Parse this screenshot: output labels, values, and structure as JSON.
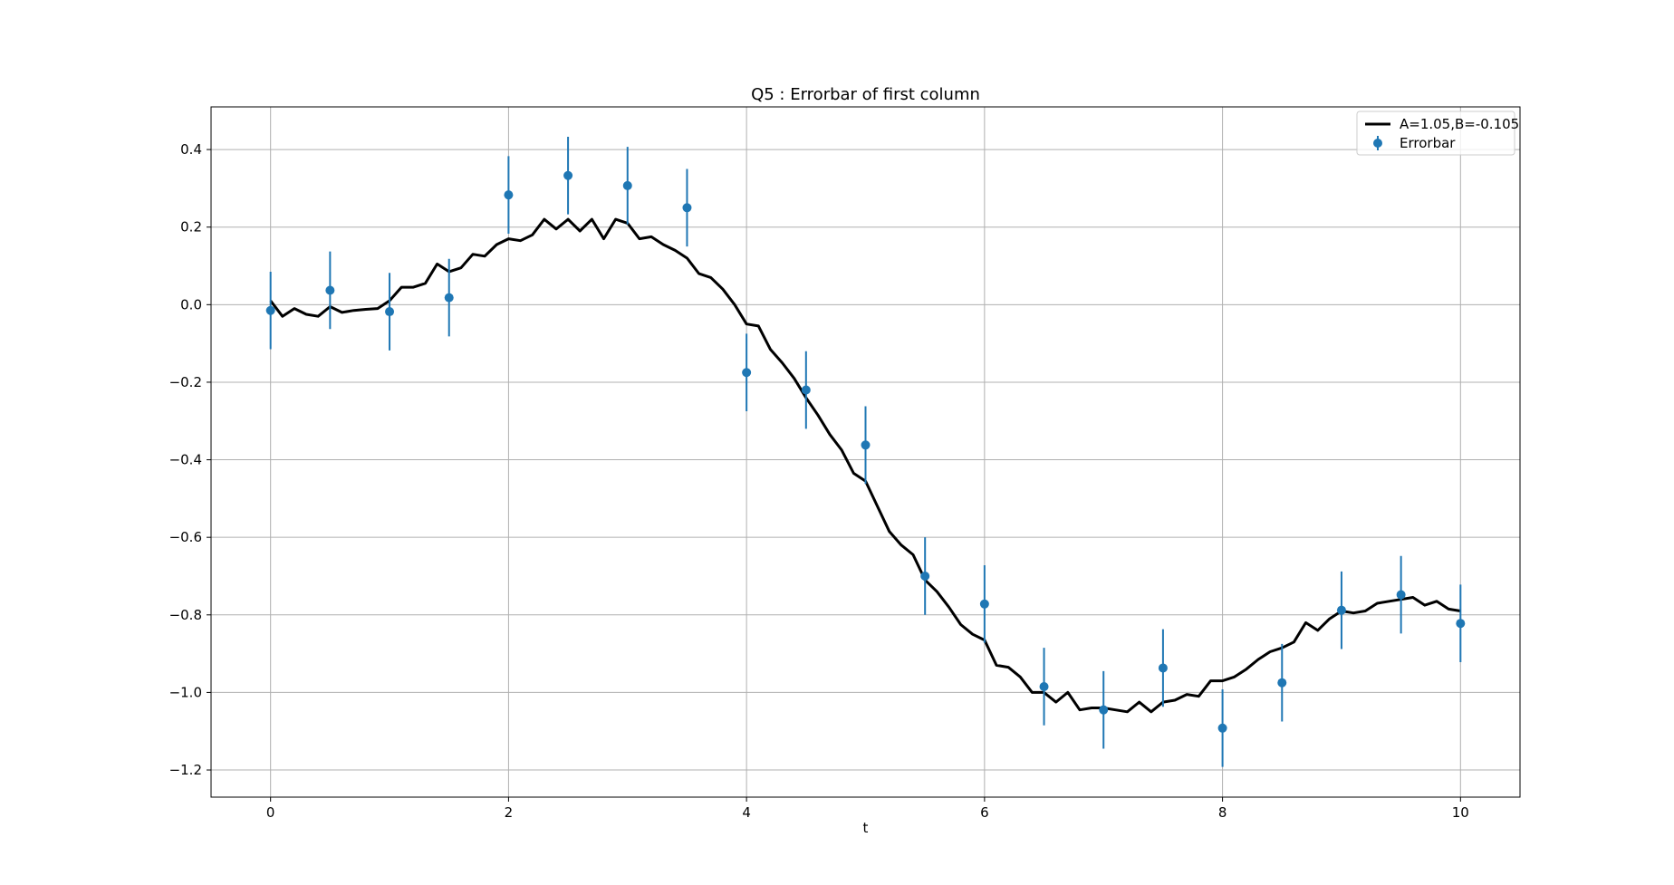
{
  "chart_data": {
    "type": "line",
    "title": "Q5 : Errorbar of first column",
    "xlabel": "t",
    "ylabel": "",
    "xlim": [
      -0.5,
      10.5
    ],
    "ylim": [
      -1.27,
      0.51
    ],
    "xticks": [
      0,
      2,
      4,
      6,
      8,
      10
    ],
    "yticks": [
      -1.2,
      -1.0,
      -0.8,
      -0.6,
      -0.4,
      -0.2,
      0.0,
      0.2,
      0.4
    ],
    "grid": true,
    "legend_position": "top-right",
    "colors": {
      "fit_line": "#000000",
      "errorbar": "#1f77b4",
      "grid": "#b0b0b0"
    },
    "fit_series": {
      "name": "A=1.05,B=-0.105",
      "x": [
        0.0,
        0.1,
        0.2,
        0.3,
        0.4,
        0.5,
        0.6,
        0.7,
        0.8,
        0.9,
        1.0,
        1.1,
        1.2,
        1.3,
        1.4,
        1.5,
        1.6,
        1.7,
        1.8,
        1.9,
        2.0,
        2.1,
        2.2,
        2.3,
        2.4,
        2.5,
        2.6,
        2.7,
        2.8,
        2.9,
        3.0,
        3.1,
        3.2,
        3.3,
        3.4,
        3.5,
        3.6,
        3.7,
        3.8,
        3.9,
        4.0,
        4.1,
        4.2,
        4.3,
        4.4,
        4.5,
        4.6,
        4.7,
        4.8,
        4.9,
        5.0,
        5.1,
        5.2,
        5.3,
        5.4,
        5.5,
        5.6,
        5.7,
        5.8,
        5.9,
        6.0,
        6.1,
        6.2,
        6.3,
        6.4,
        6.5,
        6.6,
        6.7,
        6.8,
        6.9,
        7.0,
        7.1,
        7.2,
        7.3,
        7.4,
        7.5,
        7.6,
        7.7,
        7.8,
        7.9,
        8.0,
        8.1,
        8.2,
        8.3,
        8.4,
        8.5,
        8.6,
        8.7,
        8.8,
        8.9,
        9.0,
        9.1,
        9.2,
        9.3,
        9.4,
        9.5,
        9.6,
        9.7,
        9.8,
        9.9,
        10.0
      ],
      "y": [
        0.01,
        -0.03,
        -0.01,
        -0.025,
        -0.03,
        -0.005,
        -0.02,
        -0.015,
        -0.012,
        -0.01,
        0.01,
        0.045,
        0.045,
        0.055,
        0.105,
        0.085,
        0.095,
        0.13,
        0.125,
        0.155,
        0.17,
        0.165,
        0.18,
        0.22,
        0.195,
        0.22,
        0.19,
        0.22,
        0.17,
        0.22,
        0.21,
        0.17,
        0.175,
        0.155,
        0.14,
        0.12,
        0.08,
        0.07,
        0.04,
        0.0,
        -0.05,
        -0.055,
        -0.115,
        -0.15,
        -0.19,
        -0.24,
        -0.285,
        -0.335,
        -0.375,
        -0.435,
        -0.455,
        -0.52,
        -0.585,
        -0.62,
        -0.645,
        -0.71,
        -0.74,
        -0.78,
        -0.825,
        -0.85,
        -0.865,
        -0.93,
        -0.935,
        -0.96,
        -1.0,
        -1.0,
        -1.025,
        -1.0,
        -1.045,
        -1.04,
        -1.04,
        -1.045,
        -1.05,
        -1.025,
        -1.05,
        -1.025,
        -1.02,
        -1.005,
        -1.01,
        -0.97,
        -0.97,
        -0.96,
        -0.94,
        -0.915,
        -0.895,
        -0.885,
        -0.87,
        -0.82,
        -0.84,
        -0.81,
        -0.79,
        -0.795,
        -0.79,
        -0.77,
        -0.765,
        -0.76,
        -0.755,
        -0.775,
        -0.765,
        -0.785,
        -0.79
      ]
    },
    "errorbar_series": {
      "name": "Errorbar",
      "x": [
        0.0,
        0.5,
        1.0,
        1.5,
        2.0,
        2.5,
        3.0,
        3.5,
        4.0,
        4.5,
        5.0,
        5.5,
        6.0,
        6.5,
        7.0,
        7.5,
        8.0,
        8.5,
        9.0,
        9.5,
        10.0
      ],
      "y": [
        -0.015,
        0.037,
        -0.018,
        0.018,
        0.283,
        0.333,
        0.307,
        0.25,
        -0.175,
        -0.22,
        -0.362,
        -0.7,
        -0.772,
        -0.985,
        -1.045,
        -0.937,
        -1.092,
        -0.975,
        -0.788,
        -0.748,
        -0.822
      ],
      "err": 0.1
    }
  }
}
